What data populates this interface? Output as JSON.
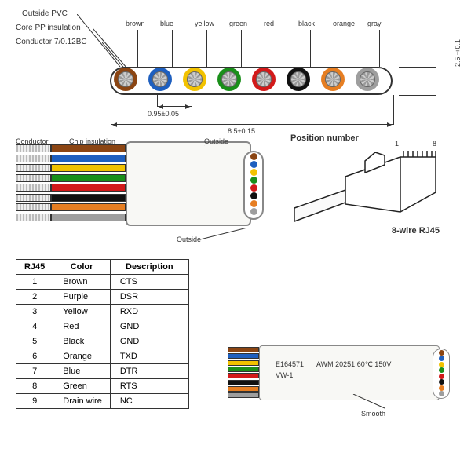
{
  "top": {
    "pvc_label": "Outside PVC",
    "pp_label": "Core PP insulation",
    "conductor_label": "Conductor 7/0.12BC",
    "height_dim": "2.5±0.1",
    "pitch_dim": "0.95±0.05",
    "width_dim": "8.5±0.15",
    "colors": [
      "brown",
      "blue",
      "yellow",
      "green",
      "red",
      "black",
      "orange",
      "gray"
    ],
    "hex": [
      "#8b4513",
      "#1e5fbf",
      "#f2c200",
      "#1a8f1a",
      "#d21a1a",
      "#111",
      "#e67e22",
      "#9e9e9e"
    ]
  },
  "mid": {
    "conductor_label": "Conductor",
    "chip_label": "Chip insulation",
    "outside_label": "Outside",
    "outside_label2": "Outside",
    "strip_colors": [
      "#8b4513",
      "#1e5fbf",
      "#f2c200",
      "#1a8f1a",
      "#d21a1a",
      "#111",
      "#e67e22",
      "#9e9e9e"
    ],
    "side_colors": [
      "#8b4513",
      "#1e5fbf",
      "#f2c200",
      "#1a8f1a",
      "#d21a1a",
      "#111",
      "#e67e22",
      "#9e9e9e"
    ]
  },
  "rj45": {
    "title": "Position number",
    "pin1": "1",
    "pin8": "8",
    "caption": "8-wire RJ45"
  },
  "table": {
    "h1": "RJ45",
    "h2": "Color",
    "h3": "Description",
    "rows": [
      {
        "n": "1",
        "c": "Brown",
        "d": "CTS"
      },
      {
        "n": "2",
        "c": "Purple",
        "d": "DSR"
      },
      {
        "n": "3",
        "c": "Yellow",
        "d": "RXD"
      },
      {
        "n": "4",
        "c": "Red",
        "d": "GND"
      },
      {
        "n": "5",
        "c": "Black",
        "d": "GND"
      },
      {
        "n": "6",
        "c": "Orange",
        "d": "TXD"
      },
      {
        "n": "7",
        "c": "Blue",
        "d": "DTR"
      },
      {
        "n": "8",
        "c": "Green",
        "d": "RTS"
      },
      {
        "n": "9",
        "c": "Drain wire",
        "d": "NC"
      }
    ]
  },
  "bottom": {
    "text1": "E164571",
    "text2": "AWM 20251 60℃ 150V",
    "text3": "VW-1",
    "smooth": "Smooth",
    "strip_colors": [
      "#8b4513",
      "#1e5fbf",
      "#f2c200",
      "#1a8f1a",
      "#d21a1a",
      "#111",
      "#e67e22",
      "#9e9e9e"
    ],
    "side_colors": [
      "#8b4513",
      "#1e5fbf",
      "#f2c200",
      "#1a8f1a",
      "#d21a1a",
      "#111",
      "#e67e22",
      "#9e9e9e"
    ]
  }
}
